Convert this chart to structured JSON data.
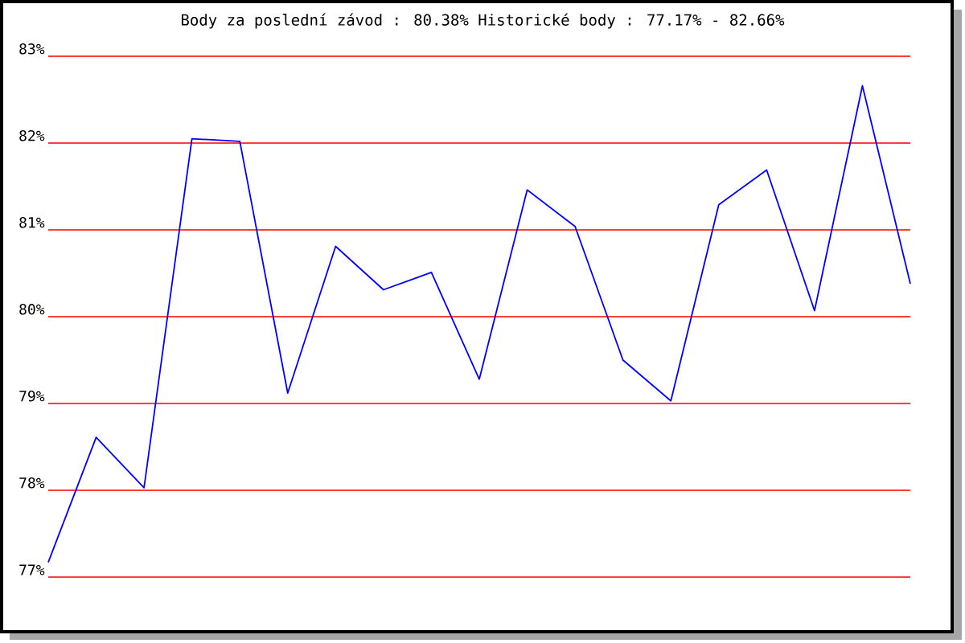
{
  "chart_data": {
    "type": "line",
    "title": "Body za poslední závod : 80.38%  Historické body : 77.17% - 82.66%",
    "categories": [
      null,
      null,
      null,
      null,
      null,
      null,
      null,
      null,
      null,
      null,
      null,
      null,
      null,
      null,
      null,
      null,
      null,
      null,
      null
    ],
    "values": [
      77.17,
      78.61,
      78.03,
      82.05,
      82.02,
      79.12,
      80.81,
      80.31,
      80.51,
      79.28,
      81.46,
      81.04,
      79.5,
      79.03,
      81.29,
      81.69,
      80.07,
      82.66,
      80.38
    ],
    "color": "#0000ff",
    "ylim": [
      77,
      83
    ],
    "yticks": [
      {
        "value": 77,
        "label": "77%"
      },
      {
        "value": 78,
        "label": "78%"
      },
      {
        "value": 79,
        "label": "79%"
      },
      {
        "value": 80,
        "label": "80%"
      },
      {
        "value": 81,
        "label": "81%"
      },
      {
        "value": 82,
        "label": "82%"
      },
      {
        "value": 83,
        "label": "83%"
      }
    ],
    "grid": "y",
    "tick_labels": "y"
  }
}
